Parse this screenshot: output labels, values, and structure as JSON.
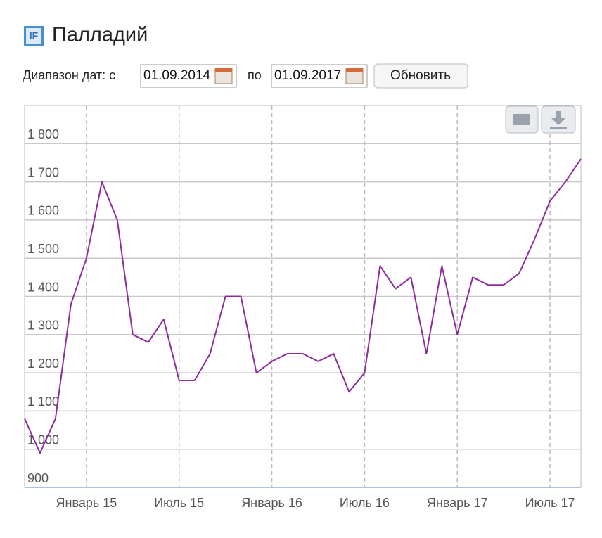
{
  "header": {
    "icon": "IF",
    "title": "Палладий"
  },
  "form": {
    "range_label": "Диапазон дат: с",
    "from": "01.09.2014",
    "to_label": "по",
    "to": "01.09.2017",
    "button": "Обновить"
  },
  "chart_data": {
    "type": "line",
    "x": [
      "2014-09",
      "2014-10",
      "2014-11",
      "2014-12",
      "2015-01",
      "2015-02",
      "2015-03",
      "2015-04",
      "2015-05",
      "2015-06",
      "2015-07",
      "2015-08",
      "2015-09",
      "2015-10",
      "2015-11",
      "2015-12",
      "2016-01",
      "2016-02",
      "2016-03",
      "2016-04",
      "2016-05",
      "2016-06",
      "2016-07",
      "2016-08",
      "2016-09",
      "2016-10",
      "2016-11",
      "2016-12",
      "2017-01",
      "2017-02",
      "2017-03",
      "2017-04",
      "2017-05",
      "2017-06",
      "2017-07",
      "2017-08",
      "2017-09"
    ],
    "series": [
      {
        "color": "#8e2c9e",
        "values": [
          1080,
          990,
          1080,
          1380,
          1500,
          1700,
          1600,
          1300,
          1280,
          1340,
          1180,
          1180,
          1250,
          1400,
          1400,
          1200,
          1230,
          1250,
          1250,
          1230,
          1250,
          1150,
          1200,
          1480,
          1420,
          1450,
          1250,
          1480,
          1300,
          1450,
          1430,
          1430,
          1460,
          1550,
          1650,
          1700,
          1760
        ]
      }
    ],
    "xlim": [
      "2014-09",
      "2017-09"
    ],
    "xticks": [
      {
        "value": "2015-01",
        "label": "Январь 15"
      },
      {
        "value": "2015-07",
        "label": "Июль 15"
      },
      {
        "value": "2016-01",
        "label": "Январь 16"
      },
      {
        "value": "2016-07",
        "label": "Июль 16"
      },
      {
        "value": "2017-01",
        "label": "Январь 17"
      },
      {
        "value": "2017-07",
        "label": "Июль 17"
      }
    ],
    "ylim": [
      900,
      1900
    ],
    "yticks": [
      900,
      {
        "value": 1000,
        "label": "1 000"
      },
      {
        "value": 1100,
        "label": "1 100"
      },
      {
        "value": 1200,
        "label": "1 200"
      },
      {
        "value": 1300,
        "label": "1 300"
      },
      {
        "value": 1400,
        "label": "1 400"
      },
      {
        "value": 1500,
        "label": "1 500"
      },
      {
        "value": 1600,
        "label": "1 600"
      },
      {
        "value": 1700,
        "label": "1 700"
      },
      {
        "value": 1800,
        "label": "1 800"
      }
    ],
    "grid": true
  }
}
